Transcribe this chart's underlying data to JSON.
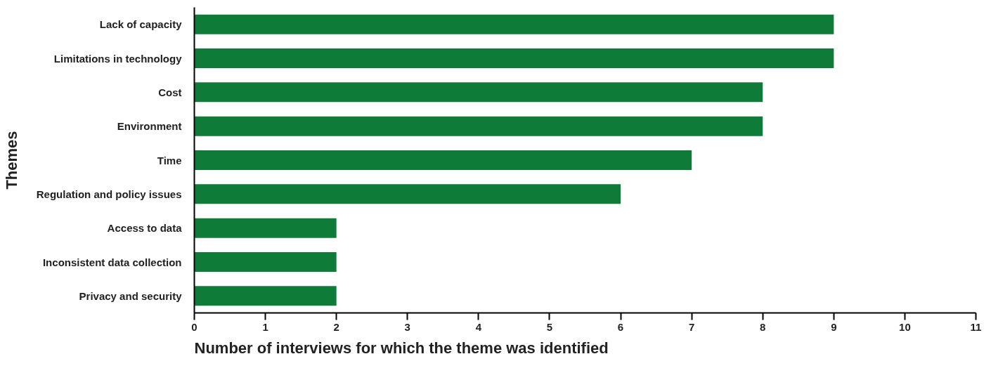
{
  "chart_data": {
    "type": "bar",
    "orientation": "horizontal",
    "xlabel": "Number of interviews for which the theme was identified",
    "ylabel": "Themes",
    "categories": [
      "Lack of capacity",
      "Limitations in technology",
      "Cost",
      "Environment",
      "Time",
      "Regulation and policy issues",
      "Access to data",
      "Inconsistent data collection",
      "Privacy and security"
    ],
    "values": [
      9,
      9,
      8,
      8,
      7,
      6,
      2,
      2,
      2
    ],
    "color": "#0e7c38",
    "xlim": [
      0,
      11
    ],
    "xticks": [
      0,
      1,
      2,
      3,
      4,
      5,
      6,
      7,
      8,
      9,
      10,
      11
    ],
    "grid": false
  }
}
